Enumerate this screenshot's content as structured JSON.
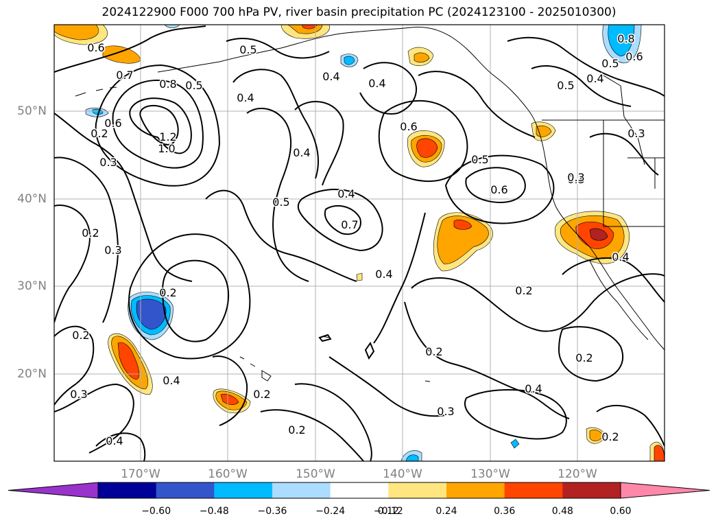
{
  "title": "2024122900 F000 700 hPa PV, river basin precipitation PC (2024123100 - 2025010300)",
  "axes": {
    "lat_labels": [
      "50°N",
      "40°N",
      "30°N",
      "20°N"
    ],
    "lon_labels": [
      "170°W",
      "160°W",
      "150°W",
      "140°W",
      "130°W",
      "120°W"
    ]
  },
  "contour_labels": [
    "0.6",
    "0.7",
    "0.8",
    "0.5",
    "0.5",
    "0.4",
    "0.4",
    "0.4",
    "0.4",
    "0.5",
    "0.8",
    "0.6",
    "0.5",
    "0.4",
    "0.2",
    "0.3",
    "1.2",
    "1.0",
    "0.6",
    "0.3",
    "0.4",
    "0.5",
    "0.6",
    "0.7",
    "0.5",
    "0.6",
    "0.3",
    "0.3",
    "0.2",
    "0.3",
    "0.2",
    "0.4",
    "0.2",
    "0.2",
    "0.2",
    "0.4",
    "0.2",
    "0.4",
    "0.3",
    "0.2",
    "0.3",
    "0.4",
    "0.2",
    "0.4",
    "0.2"
  ],
  "colorbar": {
    "ticks": [
      "−0.60",
      "−0.48",
      "−0.36",
      "−0.24",
      "−0.12",
      "0.12",
      "0.24",
      "0.36",
      "0.48",
      "0.60"
    ],
    "colors": {
      "below_min": "#9933cc",
      "-0.60_-0.48": "#000099",
      "-0.48_-0.36": "#3355cc",
      "-0.36_-0.24": "#00bbff",
      "-0.24_-0.12": "#aaddff",
      "-0.12_0.12": "#ffffff",
      "0.12_0.24": "#ffe680",
      "0.24_0.36": "#ffa500",
      "0.36_0.48": "#ff4500",
      "0.48_0.60": "#b22222",
      "above_max": "#ff88aa"
    }
  }
}
